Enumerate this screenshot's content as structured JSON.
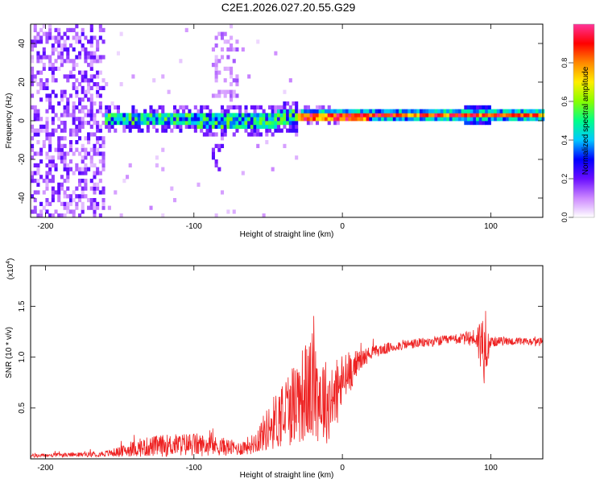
{
  "title": "C2E1.2026.027.20.55.G29",
  "colors": {
    "snr_line": "#ee2222",
    "axis": "#000000",
    "background": "#ffffff"
  },
  "chart_data": [
    {
      "type": "heatmap",
      "title": "C2E1.2026.027.20.55.G29",
      "xlabel": "Height of straight line (km)",
      "ylabel": "Frequency (Hz)",
      "xlim": [
        -210,
        135
      ],
      "ylim": [
        -50,
        50
      ],
      "x_ticks": [
        -200,
        -100,
        0,
        100
      ],
      "y_ticks": [
        -40,
        -20,
        0,
        20,
        40
      ],
      "colorbar": {
        "label": "Normalized spectral amplitude",
        "range": [
          0,
          1
        ],
        "ticks": [
          "0.0",
          "0.2",
          "0.4",
          "0.6",
          "0.8"
        ],
        "tick_values": [
          0,
          0.2,
          0.4,
          0.6,
          0.8
        ],
        "colormap": [
          "#ffffff",
          "#cc88ff",
          "#6a0dff",
          "#0000ff",
          "#00c8ff",
          "#00ff88",
          "#88ff00",
          "#ffee00",
          "#ff8800",
          "#ff0000",
          "#ff3399"
        ]
      },
      "ridge": {
        "description_values": [
          {
            "x": -175,
            "freq": 0
          },
          {
            "x": -100,
            "freq": 0
          },
          {
            "x": -60,
            "freq": -1
          },
          {
            "x": -30,
            "freq": 1
          },
          {
            "x": 0,
            "freq": 1.5
          },
          {
            "x": 90,
            "freq": 2
          },
          {
            "x": 135,
            "freq": 2
          }
        ]
      }
    },
    {
      "type": "line",
      "xlabel": "Height of straight line (km)",
      "ylabel": "SNR (10 * v/v)",
      "y_multiplier": "(x10⁴)",
      "y_multiplier_base": "(x10",
      "y_multiplier_exp": "4",
      "y_multiplier_close": ")",
      "xlim": [
        -210,
        135
      ],
      "ylim": [
        0,
        1.9
      ],
      "x_ticks": [
        -200,
        -100,
        0,
        100
      ],
      "y_ticks": [
        0.5,
        1.0,
        1.5
      ],
      "y_tick_labels": [
        "0.5",
        "1.0",
        "1.5"
      ],
      "series": [
        {
          "envelope_x": [
            -210,
            -180,
            -160,
            -150,
            -140,
            -130,
            -120,
            -110,
            -100,
            -90,
            -80,
            -70,
            -60,
            -50,
            -40,
            -30,
            -20,
            -10,
            -5,
            0,
            10,
            20,
            40,
            60,
            80,
            90,
            95,
            100,
            110,
            120,
            135
          ],
          "envelope_y": [
            0.03,
            0.04,
            0.05,
            0.07,
            0.1,
            0.12,
            0.13,
            0.14,
            0.14,
            0.13,
            0.12,
            0.1,
            0.15,
            0.3,
            0.45,
            0.6,
            0.7,
            0.55,
            0.6,
            0.75,
            0.95,
            1.05,
            1.12,
            1.15,
            1.18,
            1.19,
            1.1,
            1.15,
            1.16,
            1.15,
            1.15
          ],
          "noise_amp": [
            0.02,
            0.02,
            0.03,
            0.05,
            0.08,
            0.1,
            0.11,
            0.11,
            0.12,
            0.1,
            0.09,
            0.07,
            0.1,
            0.22,
            0.35,
            0.45,
            0.55,
            0.4,
            0.35,
            0.3,
            0.12,
            0.06,
            0.05,
            0.05,
            0.05,
            0.1,
            0.4,
            0.05,
            0.04,
            0.04,
            0.04
          ]
        }
      ]
    }
  ]
}
